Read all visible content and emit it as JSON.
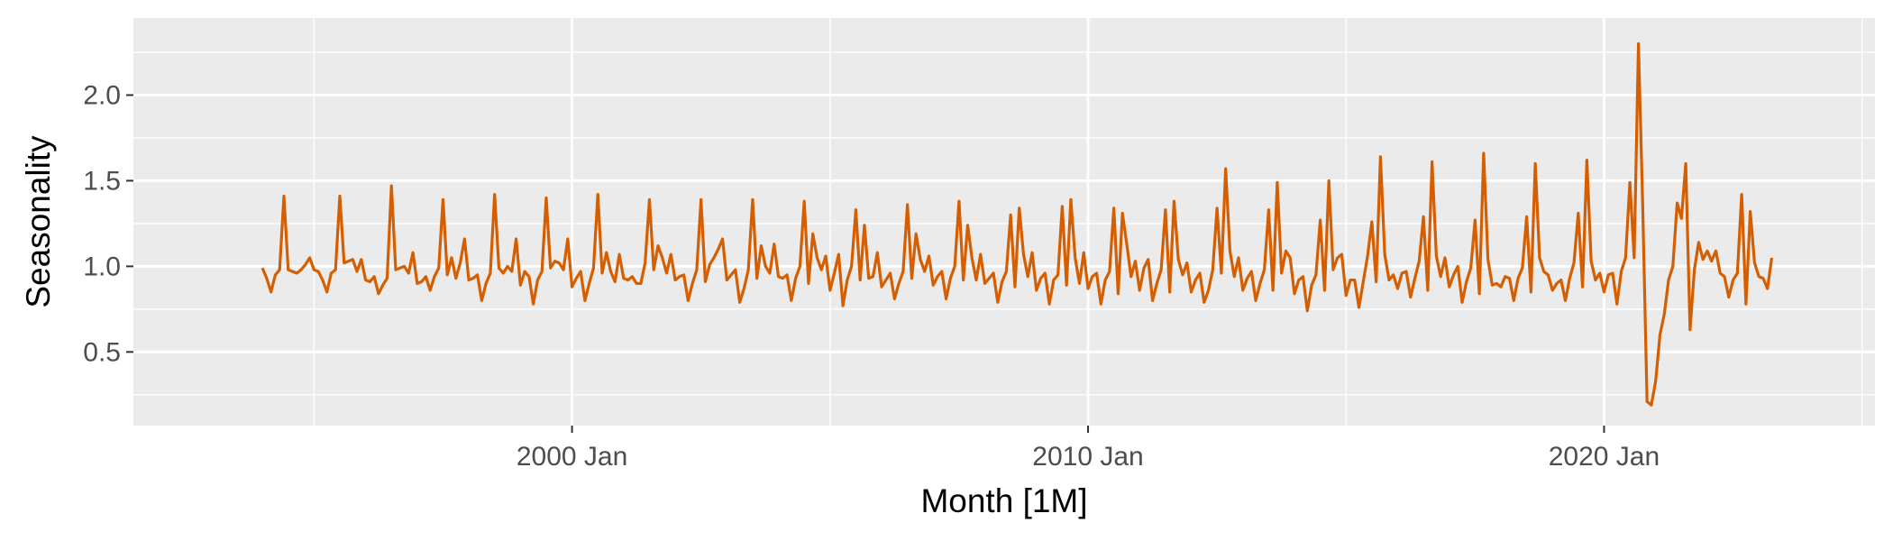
{
  "chart_data": {
    "type": "line",
    "xlabel": "Month [1M]",
    "ylabel": "Seasonality",
    "x_ticks": [
      "2000 Jan",
      "2010 Jan",
      "2020 Jan"
    ],
    "y_ticks": [
      "0.5",
      "1.0",
      "1.5",
      "2.0"
    ],
    "y_tick_values": [
      0.5,
      1.0,
      1.5,
      2.0
    ],
    "x_tick_dates": [
      "2000-01",
      "2010-01",
      "2020-01"
    ],
    "x_range": [
      "1991-07",
      "2025-04"
    ],
    "ylim": [
      0.07,
      2.45
    ],
    "grid": true,
    "series_color": "#D55E00",
    "panel_color": "#EBEBEB",
    "grid_color": "#FFFFFF",
    "start_month": "1994-01",
    "series": [
      {
        "values": [
          0.99,
          0.93,
          0.85,
          0.95,
          0.98,
          1.41,
          0.98,
          0.97,
          0.96,
          0.98,
          1.01,
          1.05,
          0.98,
          0.97,
          0.92,
          0.85,
          0.96,
          0.98,
          1.41,
          1.02,
          1.03,
          1.04,
          0.97,
          1.04,
          0.92,
          0.91,
          0.94,
          0.84,
          0.89,
          0.93,
          1.47,
          0.98,
          0.99,
          1.0,
          0.96,
          1.08,
          0.9,
          0.91,
          0.94,
          0.86,
          0.94,
          0.99,
          1.39,
          0.95,
          1.05,
          0.93,
          1.02,
          1.16,
          0.92,
          0.93,
          0.95,
          0.8,
          0.9,
          0.96,
          1.42,
          0.99,
          0.96,
          1.0,
          0.97,
          1.16,
          0.89,
          0.97,
          0.94,
          0.78,
          0.92,
          0.97,
          1.4,
          0.99,
          1.03,
          1.02,
          0.98,
          1.16,
          0.88,
          0.93,
          0.97,
          0.8,
          0.9,
          0.99,
          1.42,
          0.96,
          1.08,
          0.97,
          0.91,
          1.07,
          0.93,
          0.92,
          0.94,
          0.9,
          0.9,
          1.02,
          1.39,
          0.98,
          1.12,
          1.05,
          0.96,
          1.07,
          0.92,
          0.94,
          0.95,
          0.8,
          0.9,
          0.98,
          1.39,
          0.91,
          1.01,
          1.05,
          1.1,
          1.16,
          0.92,
          0.95,
          0.98,
          0.79,
          0.87,
          0.98,
          1.39,
          0.93,
          1.12,
          1.0,
          0.96,
          1.13,
          0.94,
          0.93,
          0.95,
          0.8,
          0.93,
          1.0,
          1.38,
          0.9,
          1.19,
          1.05,
          0.98,
          1.06,
          0.86,
          0.96,
          1.07,
          0.77,
          0.92,
          1.0,
          1.33,
          0.92,
          1.24,
          0.93,
          0.94,
          1.08,
          0.88,
          0.92,
          0.96,
          0.81,
          0.9,
          0.97,
          1.36,
          0.93,
          1.19,
          1.04,
          0.97,
          1.06,
          0.89,
          0.94,
          0.97,
          0.81,
          0.93,
          1.0,
          1.38,
          0.92,
          1.24,
          1.05,
          0.92,
          1.07,
          0.9,
          0.93,
          0.96,
          0.79,
          0.91,
          0.97,
          1.3,
          0.88,
          1.34,
          1.07,
          0.94,
          1.08,
          0.86,
          0.93,
          0.96,
          0.78,
          0.92,
          0.95,
          1.35,
          0.89,
          1.39,
          1.05,
          0.9,
          1.08,
          0.87,
          0.94,
          0.96,
          0.78,
          0.92,
          0.97,
          1.34,
          0.84,
          1.31,
          1.13,
          0.94,
          1.03,
          0.86,
          0.99,
          1.04,
          0.8,
          0.9,
          0.98,
          1.33,
          0.85,
          1.38,
          1.04,
          0.95,
          1.02,
          0.85,
          0.92,
          0.96,
          0.79,
          0.86,
          0.98,
          1.34,
          0.96,
          1.57,
          1.09,
          0.94,
          1.05,
          0.86,
          0.93,
          0.97,
          0.8,
          0.9,
          0.98,
          1.33,
          0.86,
          1.49,
          0.96,
          1.09,
          1.05,
          0.84,
          0.92,
          0.94,
          0.74,
          0.89,
          0.95,
          1.27,
          0.86,
          1.5,
          0.98,
          1.05,
          1.07,
          0.83,
          0.92,
          0.92,
          0.76,
          0.91,
          1.06,
          1.26,
          0.91,
          1.64,
          1.07,
          0.92,
          0.95,
          0.87,
          0.96,
          0.97,
          0.82,
          0.93,
          1.03,
          1.29,
          0.86,
          1.61,
          1.06,
          0.94,
          1.05,
          0.88,
          0.95,
          1.0,
          0.79,
          0.91,
          0.99,
          1.27,
          0.84,
          1.66,
          1.04,
          0.89,
          0.9,
          0.88,
          0.94,
          0.93,
          0.8,
          0.93,
          0.99,
          1.29,
          0.85,
          1.6,
          1.05,
          0.97,
          0.95,
          0.86,
          0.9,
          0.92,
          0.8,
          0.93,
          1.02,
          1.31,
          0.88,
          1.62,
          1.03,
          0.92,
          0.96,
          0.85,
          0.95,
          0.96,
          0.78,
          0.97,
          1.05,
          1.49,
          1.05,
          2.3,
          1.34,
          0.21,
          0.19,
          0.33,
          0.6,
          0.72,
          0.92,
          1.0,
          1.37,
          1.28,
          1.6,
          0.63,
          0.98,
          1.14,
          1.04,
          1.09,
          1.03,
          1.09,
          0.96,
          0.94,
          0.82,
          0.92,
          0.96,
          1.42,
          0.78,
          1.32,
          1.02,
          0.94,
          0.93,
          0.87,
          1.05
        ]
      }
    ]
  }
}
